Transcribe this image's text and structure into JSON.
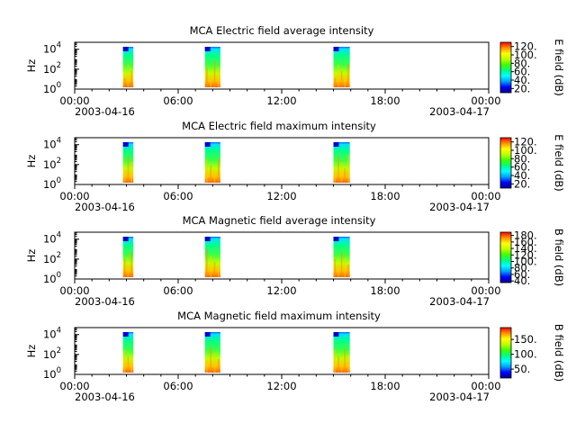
{
  "colormap": [
    "#00008c",
    "#0000ff",
    "#00a0ff",
    "#00ffff",
    "#00ff80",
    "#40ff00",
    "#c0ff00",
    "#ffff00",
    "#ff9000",
    "#ff0000"
  ],
  "chart_data": [
    {
      "type": "heatmap",
      "title": "MCA  Electric field average intensity",
      "ylabel": "Hz",
      "yscale": "log",
      "y_ticks": [
        "10",
        "10",
        "10"
      ],
      "y_tick_exponents": [
        "0",
        "2",
        "4"
      ],
      "x_ticks": [
        "00:00",
        "06:00",
        "12:00",
        "18:00",
        "00:00"
      ],
      "x_date_start": "2003-04-16",
      "x_date_end": "2003-04-17",
      "colorbar_label": "E field (dB)",
      "colorbar_ticks": [
        "120.",
        "100.",
        "80.",
        "60.",
        "40.",
        "20."
      ],
      "colorbar_range": [
        10,
        130
      ],
      "data_intervals_hours": [
        [
          2.8,
          3.4
        ],
        [
          7.55,
          8.45
        ],
        [
          15.0,
          15.95
        ]
      ]
    },
    {
      "type": "heatmap",
      "title": "MCA  Electric field maximum intensity",
      "ylabel": "Hz",
      "yscale": "log",
      "y_ticks": [
        "10",
        "10",
        "10"
      ],
      "y_tick_exponents": [
        "0",
        "2",
        "4"
      ],
      "x_ticks": [
        "00:00",
        "06:00",
        "12:00",
        "18:00",
        "00:00"
      ],
      "x_date_start": "2003-04-16",
      "x_date_end": "2003-04-17",
      "colorbar_label": "E field (dB)",
      "colorbar_ticks": [
        "120.",
        "100.",
        "80.",
        "60.",
        "40.",
        "20."
      ],
      "colorbar_range": [
        10,
        130
      ],
      "data_intervals_hours": [
        [
          2.8,
          3.4
        ],
        [
          7.55,
          8.45
        ],
        [
          15.0,
          15.95
        ]
      ]
    },
    {
      "type": "heatmap",
      "title": "MCA  Magnetic field average intensity",
      "ylabel": "Hz",
      "yscale": "log",
      "y_ticks": [
        "10",
        "10",
        "10"
      ],
      "y_tick_exponents": [
        "0",
        "2",
        "4"
      ],
      "x_ticks": [
        "00:00",
        "06:00",
        "12:00",
        "18:00",
        "00:00"
      ],
      "x_date_start": "2003-04-16",
      "x_date_end": "2003-04-17",
      "colorbar_label": "B field (dB)",
      "colorbar_ticks": [
        "180.",
        "160.",
        "140.",
        "120.",
        "100.",
        "80.",
        "60.",
        "40."
      ],
      "colorbar_range": [
        35,
        190
      ],
      "data_intervals_hours": [
        [
          2.8,
          3.4
        ],
        [
          7.55,
          8.45
        ],
        [
          15.0,
          15.95
        ]
      ]
    },
    {
      "type": "heatmap",
      "title": "MCA  Magnetic field maximum intensity",
      "ylabel": "Hz",
      "yscale": "log",
      "y_ticks": [
        "10",
        "10",
        "10"
      ],
      "y_tick_exponents": [
        "0",
        "2",
        "4"
      ],
      "x_ticks": [
        "00:00",
        "06:00",
        "12:00",
        "18:00",
        "00:00"
      ],
      "x_date_start": "2003-04-16",
      "x_date_end": "2003-04-17",
      "colorbar_label": "B field (dB)",
      "colorbar_ticks": [
        "150.",
        "100.",
        "50."
      ],
      "colorbar_range": [
        20,
        190
      ],
      "data_intervals_hours": [
        [
          2.8,
          3.4
        ],
        [
          7.55,
          8.45
        ],
        [
          15.0,
          15.95
        ]
      ]
    }
  ]
}
